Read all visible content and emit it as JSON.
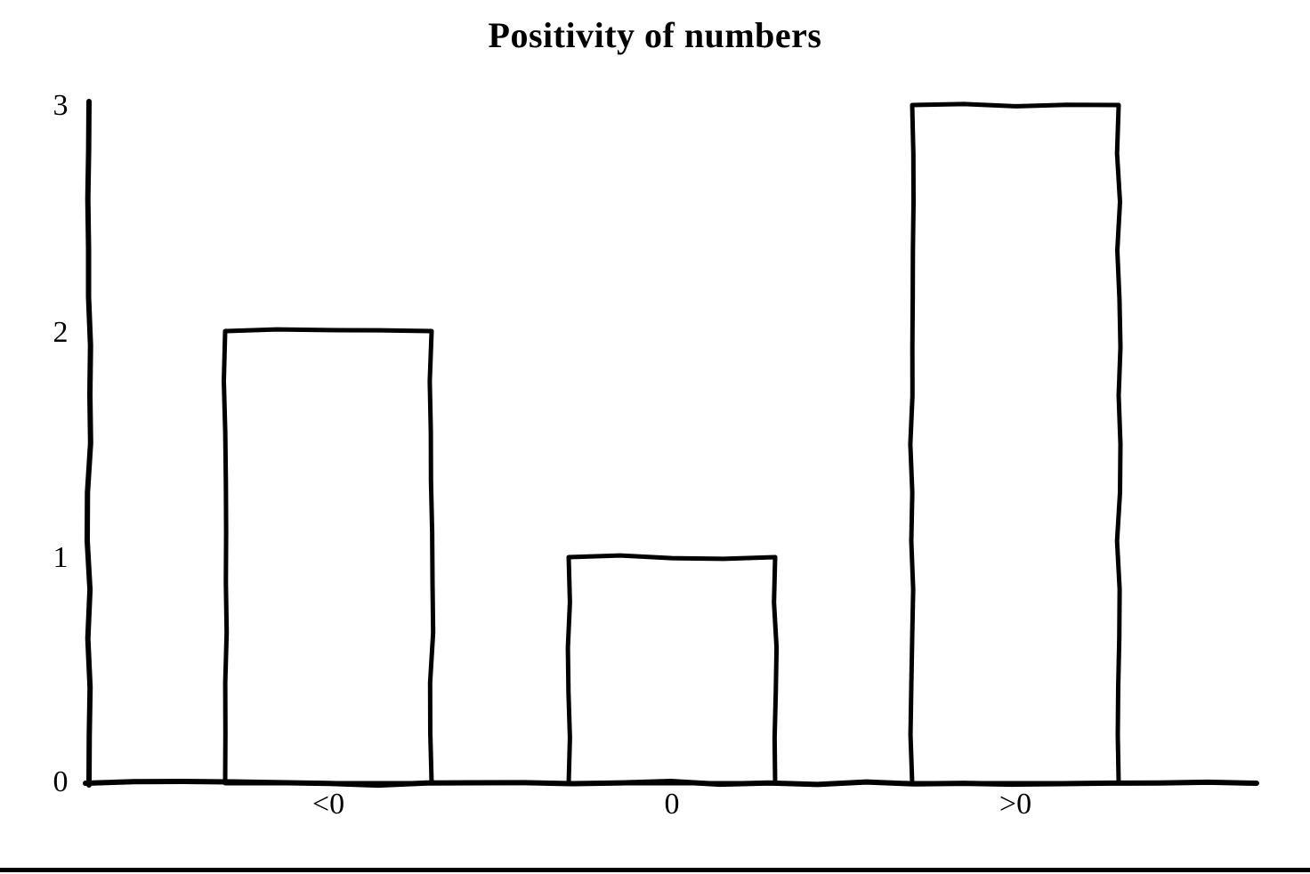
{
  "chart_data": {
    "type": "bar",
    "title": "Positivity of numbers",
    "categories": [
      "<0",
      "0",
      ">0"
    ],
    "values": [
      2,
      1,
      3
    ],
    "yticks": [
      0,
      1,
      2,
      3
    ],
    "ylim": [
      0,
      3
    ],
    "xlabel": "",
    "ylabel": "",
    "grid": false,
    "legend": false,
    "style": "hand-drawn-outline",
    "colors": {
      "stroke": "#000000",
      "bar_fill": "#ffffff",
      "background": "#ffffff",
      "text": "#000000"
    }
  }
}
